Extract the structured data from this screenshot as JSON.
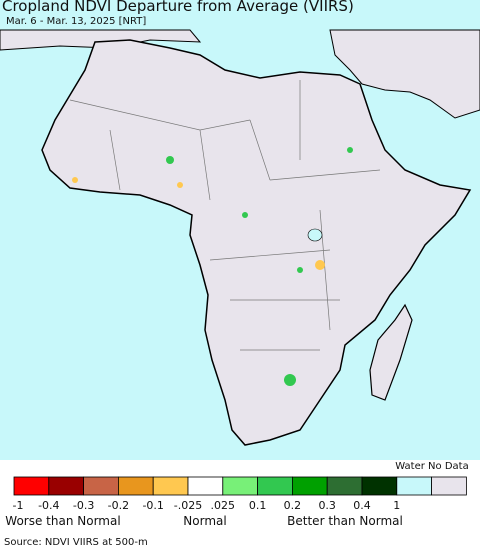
{
  "header": {
    "title": "Cropland NDVI Departure from Average (VIIRS)",
    "subtitle": "Mar. 6 - Mar. 13, 2025 [NRT]"
  },
  "legend": {
    "colors": [
      "#ff0000",
      "#990000",
      "#c86446",
      "#e8961e",
      "#ffc850",
      "#ffffff",
      "#78f078",
      "#32c850",
      "#00a000",
      "#2d6e32",
      "#003200",
      "#c8f8fa",
      "#e8e4ec"
    ],
    "tick_labels": [
      "-1",
      "-0.4",
      "-0.3",
      "-0.2",
      "-0.1",
      "-.025",
      ".025",
      "0.1",
      "0.2",
      "0.3",
      "0.4",
      "1"
    ],
    "water_no_data": "Water No Data",
    "captions": [
      "Worse than Normal",
      "Normal",
      "Better than Normal"
    ]
  },
  "footer": {
    "source": "Source: NDVI VIIRS at 500-m"
  }
}
